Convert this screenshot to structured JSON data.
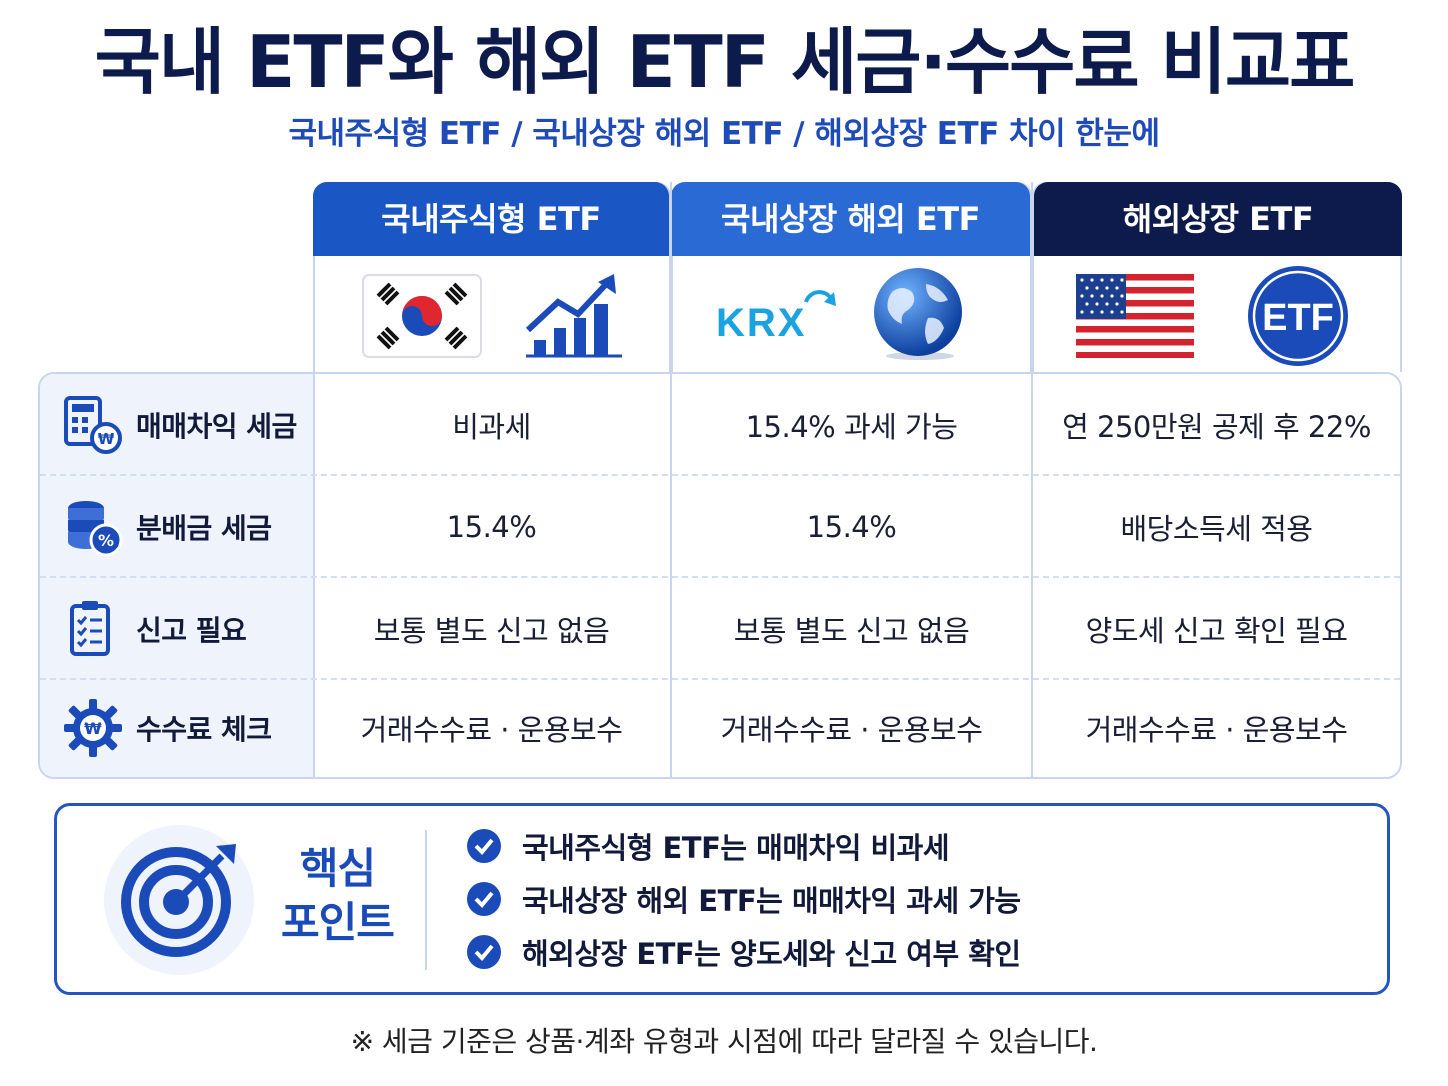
{
  "title": "국내 ETF와 해외 ETF 세금·수수료 비교표",
  "subtitle": "국내주식형 ETF / 국내상장 해외 ETF / 해외상장 ETF 차이 한눈에",
  "columns": [
    {
      "label": "국내주식형 ETF",
      "color": "#1a56c4",
      "icons": [
        "korea-flag-icon",
        "growth-chart-icon"
      ]
    },
    {
      "label": "국내상장 해외 ETF",
      "color": "#2a6ad4",
      "icons": [
        "krx-logo",
        "globe-icon"
      ],
      "logo_text": "KRX"
    },
    {
      "label": "해외상장 ETF",
      "color": "#0d1b4c",
      "icons": [
        "us-flag-icon",
        "etf-badge-icon"
      ],
      "badge_text": "ETF"
    }
  ],
  "rows": [
    {
      "label": "매매차익 세금",
      "icon": "calculator-won-icon",
      "cells": [
        "비과세",
        "15.4% 과세 가능",
        "연 250만원 공제 후 22%"
      ]
    },
    {
      "label": "분배금 세금",
      "icon": "coins-percent-icon",
      "cells": [
        "15.4%",
        "15.4%",
        "배당소득세 적용"
      ]
    },
    {
      "label": "신고 필요",
      "icon": "checklist-icon",
      "cells": [
        "보통 별도 신고 없음",
        "보통 별도 신고 없음",
        "양도세 신고 확인 필요"
      ]
    },
    {
      "label": "수수료 체크",
      "icon": "gear-won-icon",
      "cells": [
        "거래수수료 · 운용보수",
        "거래수수료 · 운용보수",
        "거래수수료 · 운용보수"
      ]
    }
  ],
  "key_points": {
    "title_line1": "핵심",
    "title_line2": "포인트",
    "items": [
      "국내주식형 ETF는 매매차익 비과세",
      "국내상장 해외 ETF는 매매차익 과세 가능",
      "해외상장 ETF는 양도세와 신고 여부 확인"
    ]
  },
  "note": "※ 세금 기준은 상품·계좌 유형과 시점에 따라 달라질 수 있습니다.",
  "colors": {
    "navy": "#0d1b4c",
    "blue": "#1a56c4",
    "accent": "#2455c3",
    "border": "#c9d5ef"
  }
}
